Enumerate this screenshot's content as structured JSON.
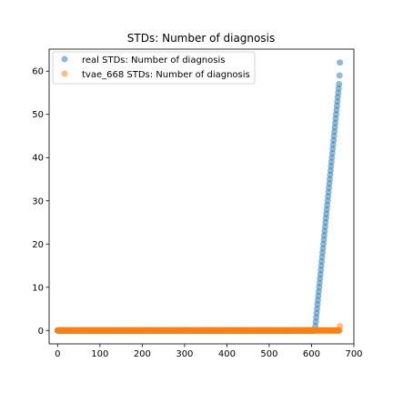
{
  "chart_data": {
    "type": "scatter",
    "title": "STDs: Number of diagnosis",
    "xlabel": "",
    "ylabel": "",
    "xlim": [
      -20,
      700
    ],
    "ylim": [
      -3.1,
      65.1
    ],
    "xticks": [
      0,
      100,
      200,
      300,
      400,
      500,
      600,
      700
    ],
    "yticks": [
      0,
      10,
      20,
      30,
      40,
      50,
      60
    ],
    "grid": false,
    "legend": "upper-left",
    "series": [
      {
        "name": "real STDs: Number of diagnosis",
        "color": "#1f77b4",
        "zero_range": [
          0,
          608
        ],
        "points": [
          [
            609,
            1
          ],
          [
            610,
            2
          ],
          [
            611,
            3
          ],
          [
            612,
            4
          ],
          [
            613,
            5
          ],
          [
            614,
            6
          ],
          [
            615,
            7
          ],
          [
            616,
            8
          ],
          [
            617,
            9
          ],
          [
            618,
            10
          ],
          [
            619,
            11
          ],
          [
            620,
            12
          ],
          [
            621,
            13
          ],
          [
            622,
            14
          ],
          [
            623,
            15
          ],
          [
            624,
            16
          ],
          [
            625,
            17
          ],
          [
            626,
            18
          ],
          [
            627,
            19
          ],
          [
            628,
            20
          ],
          [
            629,
            21
          ],
          [
            630,
            22
          ],
          [
            631,
            23
          ],
          [
            632,
            24
          ],
          [
            633,
            25
          ],
          [
            634,
            26
          ],
          [
            635,
            27
          ],
          [
            636,
            28
          ],
          [
            637,
            29
          ],
          [
            638,
            30
          ],
          [
            639,
            31
          ],
          [
            640,
            32
          ],
          [
            641,
            33
          ],
          [
            642,
            34
          ],
          [
            643,
            35
          ],
          [
            644,
            36
          ],
          [
            645,
            37
          ],
          [
            646,
            38
          ],
          [
            647,
            39
          ],
          [
            648,
            40
          ],
          [
            649,
            41
          ],
          [
            650,
            42
          ],
          [
            651,
            43
          ],
          [
            652,
            44
          ],
          [
            653,
            45
          ],
          [
            654,
            46
          ],
          [
            655,
            47
          ],
          [
            656,
            48
          ],
          [
            657,
            49
          ],
          [
            658,
            50
          ],
          [
            659,
            51
          ],
          [
            660,
            52
          ],
          [
            661,
            53
          ],
          [
            662,
            54
          ],
          [
            663,
            55
          ],
          [
            664,
            56
          ],
          [
            665,
            57
          ],
          [
            666,
            59
          ],
          [
            667,
            62
          ]
        ]
      },
      {
        "name": "tvae_668 STDs: Number of diagnosis",
        "color": "#ff7f0e",
        "zero_range": [
          0,
          666
        ],
        "points": [
          [
            667,
            1
          ]
        ]
      }
    ]
  }
}
